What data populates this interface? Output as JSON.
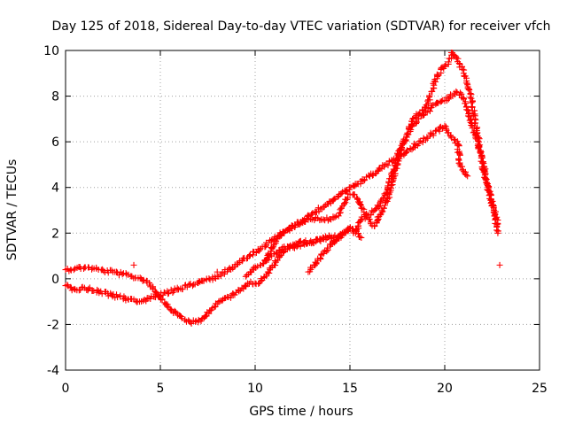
{
  "chart_data": {
    "type": "scatter",
    "title": "Day 125 of 2018, Sidereal Day-to-day VTEC variation (SDTVAR) for receiver vfch",
    "xlabel": "GPS time / hours",
    "ylabel": "SDTVAR / TECUs",
    "xlim": [
      0,
      25
    ],
    "ylim": [
      -4,
      10
    ],
    "x_ticks": [
      "0",
      "5",
      "10",
      "15",
      "20",
      "25"
    ],
    "y_ticks": [
      "-4",
      "-2",
      "0",
      "2",
      "4",
      "6",
      "8",
      "10"
    ],
    "grid": true,
    "marker": "plus",
    "color": "#ff0000",
    "series": [
      {
        "name": "main-track",
        "x": [
          0.0,
          0.5,
          1.0,
          1.5,
          2.0,
          2.5,
          3.0,
          3.5,
          4.0,
          4.3,
          4.6,
          5.0,
          5.3,
          5.6,
          6.0,
          6.3,
          6.6,
          7.0,
          7.3,
          7.6,
          8.0,
          8.3,
          8.6,
          9.0,
          9.3,
          9.6,
          10.0,
          10.3,
          10.6,
          11.0,
          11.3,
          11.6,
          12.0,
          12.3,
          12.6,
          13.0,
          13.3,
          13.6,
          14.0,
          14.3,
          14.6,
          15.0,
          15.3,
          15.6,
          16.0,
          16.3,
          16.6,
          17.0,
          17.3,
          17.6,
          18.0,
          18.3,
          18.6,
          19.0,
          19.3,
          19.6,
          20.0,
          20.3,
          20.6,
          21.0,
          21.3,
          21.6,
          22.0,
          22.3,
          22.6,
          22.8
        ],
        "y": [
          0.4,
          0.45,
          0.5,
          0.45,
          0.35,
          0.3,
          0.2,
          0.1,
          0.0,
          -0.1,
          -0.4,
          -0.8,
          -1.1,
          -1.4,
          -1.6,
          -1.8,
          -1.9,
          -1.9,
          -1.7,
          -1.4,
          -1.1,
          -0.9,
          -0.8,
          -0.6,
          -0.4,
          -0.2,
          -0.2,
          -0.1,
          0.2,
          0.6,
          1.0,
          1.3,
          1.5,
          1.6,
          1.6,
          1.6,
          1.7,
          1.8,
          1.8,
          1.7,
          1.9,
          2.2,
          2.0,
          2.6,
          2.8,
          3.0,
          3.3,
          4.0,
          4.8,
          5.6,
          6.2,
          6.7,
          7.0,
          7.3,
          7.5,
          7.7,
          7.8,
          8.0,
          8.2,
          7.9,
          7.1,
          6.3,
          5.1,
          4.0,
          3.0,
          2.4
        ]
      },
      {
        "name": "upper-track",
        "x": [
          10.5,
          10.8,
          11.0,
          11.3,
          11.6,
          12.0,
          12.3,
          12.6,
          13.0,
          13.3,
          13.6,
          14.0,
          14.2,
          14.5,
          14.7,
          15.0,
          15.2,
          15.4,
          15.6,
          16.0,
          16.3,
          16.6,
          17.0,
          17.3,
          17.6,
          18.0,
          18.3,
          18.6,
          19.0,
          19.3,
          19.6,
          20.0,
          20.2,
          20.4,
          20.6,
          20.8,
          21.0,
          21.2,
          21.4,
          21.6,
          21.8,
          22.0,
          22.3,
          22.6,
          22.8
        ],
        "y": [
          0.8,
          1.1,
          1.5,
          1.9,
          2.1,
          2.3,
          2.4,
          2.5,
          2.6,
          2.65,
          2.6,
          2.6,
          2.7,
          2.9,
          3.3,
          3.7,
          3.7,
          3.5,
          3.1,
          2.6,
          2.3,
          2.8,
          3.5,
          4.4,
          5.4,
          6.3,
          7.0,
          7.2,
          7.5,
          8.2,
          8.9,
          9.3,
          9.5,
          9.9,
          9.7,
          9.4,
          9.0,
          8.5,
          7.9,
          7.0,
          6.0,
          4.9,
          3.9,
          2.9,
          2.0
        ]
      },
      {
        "name": "lower-track",
        "x": [
          12.8,
          13.0,
          13.3,
          13.6,
          14.0,
          14.3,
          14.6,
          15.0,
          15.3,
          15.6
        ],
        "y": [
          0.3,
          0.5,
          0.8,
          1.1,
          1.5,
          1.8,
          2.0,
          2.2,
          2.1,
          1.8
        ]
      },
      {
        "name": "middle-track",
        "x": [
          9.5,
          9.8,
          10.0,
          10.3,
          10.6,
          11.0,
          11.4,
          11.8,
          12.2,
          12.6,
          13.0,
          13.4,
          13.8,
          14.2
        ],
        "y": [
          0.1,
          0.3,
          0.5,
          0.6,
          0.8,
          1.1,
          1.3,
          1.4,
          1.4,
          1.5,
          1.6,
          1.7,
          1.8,
          1.9
        ]
      },
      {
        "name": "short-segments",
        "x": [
          0.0,
          0.3,
          0.6,
          1.0,
          3.3,
          3.6,
          3.9,
          8.0,
          8.2,
          8.4,
          20.0,
          20.2,
          20.5,
          20.7,
          20.8,
          21.0,
          21.2
        ],
        "y": [
          -0.3,
          -0.4,
          -0.5,
          -0.4,
          -0.9,
          -0.9,
          -1.0,
          0.1,
          0.2,
          0.3,
          6.7,
          6.4,
          6.1,
          5.9,
          5.0,
          4.7,
          4.5
        ]
      }
    ],
    "outliers": {
      "x": [
        3.6,
        8.0,
        22.9
      ],
      "y": [
        0.6,
        0.3,
        0.6
      ]
    }
  }
}
